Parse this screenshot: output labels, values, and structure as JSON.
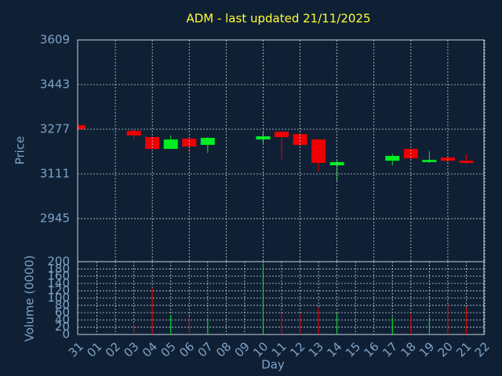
{
  "chart_data": {
    "type": "candlestick",
    "title": "ADM - last updated 21/11/2025",
    "x_label": "Day",
    "y_label": "Price",
    "volume_label": "Volume (0000)",
    "categories": [
      "31",
      "01",
      "02",
      "03",
      "04",
      "05",
      "06",
      "07",
      "08",
      "09",
      "10",
      "11",
      "12",
      "13",
      "14",
      "15",
      "16",
      "17",
      "18",
      "19",
      "20",
      "21",
      "22"
    ],
    "open": [
      3292,
      null,
      null,
      3271,
      3248,
      3204,
      3242,
      3219,
      null,
      null,
      3239,
      3268,
      3259,
      3239,
      3143,
      null,
      null,
      3160,
      3204,
      3155,
      3172,
      3160,
      null
    ],
    "high": [
      3294,
      null,
      null,
      3277,
      3250,
      3254,
      3248,
      3248,
      null,
      null,
      3268,
      3271,
      3262,
      3242,
      3160,
      null,
      null,
      3184,
      3204,
      3195,
      3175,
      3184,
      null
    ],
    "low": [
      3277,
      null,
      null,
      3239,
      3204,
      3204,
      3192,
      3189,
      null,
      null,
      3224,
      3166,
      3213,
      3120,
      3085,
      null,
      null,
      3143,
      3163,
      3152,
      3155,
      3149,
      null
    ],
    "close": [
      3277,
      null,
      null,
      3254,
      3204,
      3239,
      3213,
      3245,
      null,
      null,
      3251,
      3248,
      3219,
      3152,
      3155,
      null,
      null,
      3178,
      3169,
      3163,
      3160,
      3152,
      null
    ],
    "volume": [
      null,
      null,
      null,
      28,
      129,
      54,
      49,
      41,
      null,
      null,
      194,
      58,
      56,
      75,
      58,
      null,
      null,
      47,
      56,
      47,
      82,
      75,
      null
    ],
    "ylim": [
      2785,
      3609
    ],
    "yticks": [
      2945,
      3111,
      3277,
      3443,
      3609
    ],
    "volume_ylim": [
      0,
      200
    ],
    "volume_yticks": [
      0,
      20,
      40,
      60,
      80,
      100,
      120,
      140,
      160,
      180,
      200
    ],
    "up_color": "#00ee22",
    "down_color": "#ee0000",
    "grid": true
  }
}
